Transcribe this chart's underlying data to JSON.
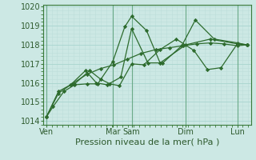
{
  "xlabel": "Pression niveau de la mer( hPa )",
  "background_color": "#cce8e4",
  "grid_major_color": "#a8d4ce",
  "grid_minor_color": "#bddeda",
  "line_color": "#2d6b2d",
  "ylim": [
    1013.8,
    1020.1
  ],
  "xlim": [
    -0.1,
    7.55
  ],
  "lines": [
    {
      "x": [
        0.0,
        0.25,
        0.65,
        1.05,
        1.5,
        1.9,
        2.45,
        2.9,
        3.15,
        3.7,
        4.2,
        5.15,
        6.05,
        7.05,
        7.4
      ],
      "y": [
        1014.2,
        1014.75,
        1015.55,
        1015.9,
        1015.95,
        1015.95,
        1017.1,
        1018.95,
        1019.5,
        1018.75,
        1017.05,
        1018.0,
        1018.3,
        1018.05,
        1018.0
      ]
    },
    {
      "x": [
        0.0,
        0.45,
        0.9,
        1.45,
        1.85,
        2.25,
        2.75,
        3.15,
        3.75,
        4.3,
        5.0,
        5.5,
        6.2,
        7.05,
        7.4
      ],
      "y": [
        1014.2,
        1015.55,
        1015.9,
        1016.65,
        1016.0,
        1015.9,
        1016.3,
        1018.85,
        1017.05,
        1017.05,
        1017.95,
        1019.3,
        1018.3,
        1018.1,
        1018.0
      ]
    },
    {
      "x": [
        0.0,
        0.45,
        0.95,
        1.5,
        2.0,
        2.5,
        3.0,
        3.5,
        4.05,
        4.55,
        5.05,
        5.55,
        6.05,
        6.55,
        7.05,
        7.4
      ],
      "y": [
        1014.2,
        1015.45,
        1015.95,
        1016.45,
        1016.75,
        1016.95,
        1017.25,
        1017.55,
        1017.75,
        1017.85,
        1017.95,
        1018.05,
        1018.1,
        1018.05,
        1017.95,
        1018.0
      ]
    },
    {
      "x": [
        1.05,
        1.6,
        2.0,
        2.35,
        2.7,
        3.15,
        3.6,
        4.2,
        4.8,
        5.45,
        5.95,
        6.45,
        7.05,
        7.4
      ],
      "y": [
        1015.95,
        1016.65,
        1016.2,
        1015.95,
        1015.85,
        1017.0,
        1016.95,
        1017.75,
        1018.3,
        1017.7,
        1016.7,
        1016.8,
        1018.05,
        1018.0
      ]
    }
  ],
  "xtick_positions": [
    0.0,
    2.45,
    3.15,
    5.15,
    7.05
  ],
  "xtick_labels": [
    "Ven",
    "Mar",
    "Sam",
    "Dim",
    "Lun"
  ],
  "ytick_values": [
    1014,
    1015,
    1016,
    1017,
    1018,
    1019,
    1020
  ],
  "fontsize_xlabel": 8,
  "fontsize_ticks": 7,
  "marker": "D",
  "marker_size": 2.2,
  "linewidth": 0.9
}
